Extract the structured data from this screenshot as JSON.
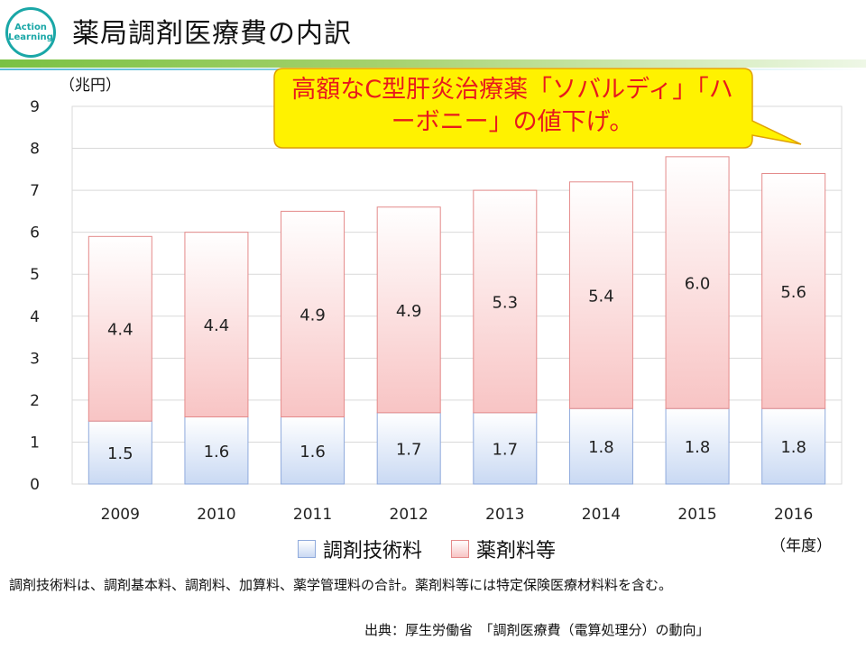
{
  "header": {
    "logo_line1": "Action",
    "logo_line2": "Learning",
    "title": "薬局調剤医療費の内訳"
  },
  "callout": {
    "text": "高額なC型肝炎治療薬「ソバルディ」「ハーボニー」の値下げ。"
  },
  "colors": {
    "blue_series": "#c9d9f3",
    "pink_series": "#f8c4c4",
    "callout_fill": "#fff200",
    "callout_text": "#e8191c"
  },
  "chart_data": {
    "type": "bar",
    "stacked": true,
    "categories": [
      "2009",
      "2010",
      "2011",
      "2012",
      "2013",
      "2014",
      "2015",
      "2016"
    ],
    "series": [
      {
        "name": "調剤技術料",
        "values": [
          1.5,
          1.6,
          1.6,
          1.7,
          1.7,
          1.8,
          1.8,
          1.8
        ]
      },
      {
        "name": "薬剤料等",
        "values": [
          4.4,
          4.4,
          4.9,
          4.9,
          5.3,
          5.4,
          6.0,
          5.6
        ]
      }
    ],
    "y_ticks": [
      "0",
      "1",
      "2",
      "3",
      "4",
      "5",
      "6",
      "7",
      "8",
      "9"
    ],
    "ylim": [
      0,
      9
    ],
    "ylabel": "（兆円）",
    "xlabel": "（年度）",
    "legend": [
      "調剤技術料",
      "薬剤料等"
    ],
    "legend_position": "bottom"
  },
  "footer": {
    "note": "調剤技術料は、調剤基本料、調剤料、加算料、薬学管理料の合計。薬剤料等には特定保険医療材料料を含む。",
    "source": "出典：厚生労働省　「調剤医療費（電算処理分）の動向」"
  }
}
